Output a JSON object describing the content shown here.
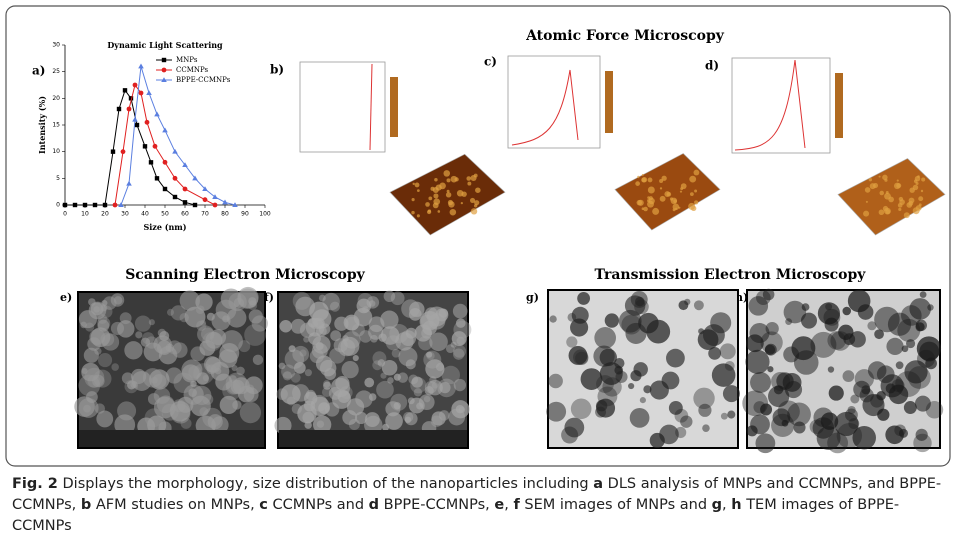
{
  "chart_data": {
    "type": "line",
    "title": "Dynamic Light Scattering",
    "panel_label": "a)",
    "xlabel": "Size (nm)",
    "ylabel": "Intensity (%)",
    "xlim": [
      0,
      100
    ],
    "ylim": [
      0,
      30
    ],
    "xticks": [
      0,
      10,
      20,
      30,
      40,
      50,
      60,
      70,
      80,
      90,
      100
    ],
    "yticks": [
      0,
      5,
      10,
      15,
      20,
      25,
      30
    ],
    "series": [
      {
        "name": "MNPs",
        "color": "#000000",
        "marker": "square",
        "x": [
          0,
          5,
          10,
          15,
          20,
          24,
          27,
          30,
          33,
          36,
          40,
          43,
          46,
          50,
          55,
          60,
          65
        ],
        "values": [
          0,
          0,
          0,
          0,
          0,
          10,
          18,
          21.5,
          20,
          15,
          11,
          8,
          5,
          3,
          1.5,
          0.5,
          0
        ]
      },
      {
        "name": "CCMNPs",
        "color": "#e02020",
        "marker": "circle",
        "x": [
          25,
          29,
          32,
          35,
          38,
          41,
          45,
          50,
          55,
          60,
          70,
          75
        ],
        "values": [
          0,
          10,
          18,
          22.5,
          21,
          15.5,
          11,
          8,
          5,
          3,
          1,
          0
        ]
      },
      {
        "name": "BPPE-CCMNPs",
        "color": "#5b7fe0",
        "marker": "triangle",
        "x": [
          28,
          32,
          35,
          38,
          42,
          46,
          50,
          55,
          60,
          65,
          70,
          75,
          80,
          85
        ],
        "values": [
          0,
          4,
          16,
          26,
          21,
          17,
          14,
          10,
          7.5,
          5,
          3,
          1.5,
          0.5,
          0
        ]
      }
    ]
  },
  "afm": {
    "title": "Atomic Force Microscopy",
    "labels": [
      "b)",
      "c)",
      "d)"
    ]
  },
  "sem": {
    "title": "Scanning Electron Microscopy",
    "labels": [
      "e)",
      "f)"
    ]
  },
  "tem": {
    "title": "Transmission Electron Microscopy",
    "labels": [
      "g)",
      "h)"
    ]
  },
  "caption": [
    "Fig. 2",
    " Displays the morphology, size distribution of the nanoparticles including ",
    "a",
    " DLS analysis of MNPs and CCMNPs, and BPPE-CCMNPs, ",
    "b",
    " AFM studies on MNPs, ",
    "c",
    " CCMNPs and ",
    "d",
    " BPPE-CCMNPs, ",
    "e",
    ", ",
    "f",
    " SEM images of MNPs and ",
    "g",
    ", ",
    "h",
    " TEM images of BPPE-CCMNPs"
  ]
}
